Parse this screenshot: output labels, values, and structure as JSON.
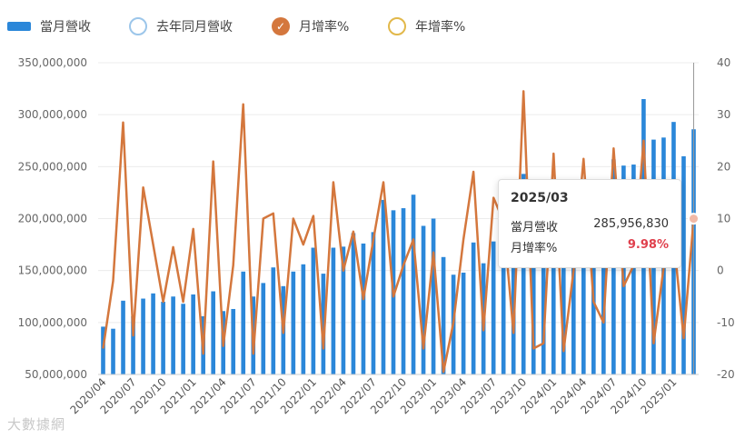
{
  "legend": [
    {
      "label": "當月營收",
      "kind": "bar",
      "color": "#2b87d9"
    },
    {
      "label": "去年同月營收",
      "kind": "circle-outline",
      "color": "#9cc6ea"
    },
    {
      "label": "月增率%",
      "kind": "circle-check",
      "color": "#d4773d"
    },
    {
      "label": "年增率%",
      "kind": "circle-outline",
      "color": "#e2b84a"
    }
  ],
  "tooltip": {
    "title": "2025/03",
    "revenue_label": "當月營收",
    "revenue_value": "285,956,830",
    "mom_label": "月增率%",
    "mom_value": "9.98%"
  },
  "watermark": "大數據網",
  "colors": {
    "bar": "#2b87d9",
    "line": "#d4773d",
    "marker": "#f2b9a6"
  },
  "chart_data": {
    "type": "bar+line",
    "categories": [
      "2020/04",
      "2020/05",
      "2020/06",
      "2020/07",
      "2020/08",
      "2020/09",
      "2020/10",
      "2020/11",
      "2020/12",
      "2021/01",
      "2021/02",
      "2021/03",
      "2021/04",
      "2021/05",
      "2021/06",
      "2021/07",
      "2021/08",
      "2021/09",
      "2021/10",
      "2021/11",
      "2021/12",
      "2022/01",
      "2022/02",
      "2022/03",
      "2022/04",
      "2022/05",
      "2022/06",
      "2022/07",
      "2022/08",
      "2022/09",
      "2022/10",
      "2022/11",
      "2022/12",
      "2023/01",
      "2023/02",
      "2023/03",
      "2023/04",
      "2023/05",
      "2023/06",
      "2023/07",
      "2023/08",
      "2023/09",
      "2023/10",
      "2023/11",
      "2023/12",
      "2024/01",
      "2024/02",
      "2024/03",
      "2024/04",
      "2024/05",
      "2024/06",
      "2024/07",
      "2024/08",
      "2024/09",
      "2024/10",
      "2024/11",
      "2024/12",
      "2025/01",
      "2025/02",
      "2025/03"
    ],
    "x_tick_labels": [
      "2020/04",
      "2020/07",
      "2020/10",
      "2021/01",
      "2021/04",
      "2021/07",
      "2021/10",
      "2022/01",
      "2022/04",
      "2022/07",
      "2022/10",
      "2023/01",
      "2023/04",
      "2023/07",
      "2023/10",
      "2024/01",
      "2024/04",
      "2024/07",
      "2024/10",
      "2025/01"
    ],
    "series": [
      {
        "name": "當月營收",
        "type": "bar",
        "axis": "left",
        "values": [
          96000000,
          94000000,
          121000000,
          106000000,
          123000000,
          128000000,
          120000000,
          125000000,
          118000000,
          127000000,
          106000000,
          130000000,
          111000000,
          113000000,
          149000000,
          125000000,
          138000000,
          153000000,
          135000000,
          149000000,
          156000000,
          172000000,
          147000000,
          172000000,
          173000000,
          186000000,
          176000000,
          187000000,
          218000000,
          208000000,
          210000000,
          223000000,
          193000000,
          200000000,
          163000000,
          146000000,
          148000000,
          177000000,
          157000000,
          178000000,
          160000000,
          180000000,
          243000000,
          160000000,
          155000000,
          160000000,
          158000000,
          157000000,
          158000000,
          157000000,
          160000000,
          257000000,
          251000000,
          252000000,
          315000000,
          276000000,
          278000000,
          293000000,
          260000000,
          285956830
        ]
      },
      {
        "name": "月增率%",
        "type": "line",
        "axis": "right",
        "values": [
          -15.0,
          -2.0,
          28.5,
          -12.5,
          16.0,
          5.0,
          -6.0,
          4.5,
          -6.0,
          8.0,
          -16.0,
          21.0,
          -14.5,
          1.0,
          32.0,
          -16.0,
          10.0,
          11.0,
          -12.0,
          10.0,
          5.0,
          10.5,
          -15.0,
          17.0,
          0.0,
          7.5,
          -5.5,
          6.0,
          17.0,
          -5.0,
          1.0,
          6.0,
          -15.0,
          3.5,
          -19.5,
          -10.0,
          6.0,
          19.0,
          -11.5,
          14.0,
          9.5,
          -12.0,
          34.5,
          -15.0,
          -14.0,
          22.5,
          -15.5,
          0.0,
          21.5,
          -6.0,
          -10.0,
          23.5,
          -3.0,
          1.0,
          25.0,
          -14.0,
          0.5,
          6.0,
          -13.0,
          9.98
        ]
      }
    ],
    "y_left": {
      "min": 50000000,
      "max": 350000000,
      "ticks": [
        "50,000,000",
        "100,000,000",
        "150,000,000",
        "200,000,000",
        "250,000,000",
        "300,000,000",
        "350,000,000"
      ]
    },
    "y_right": {
      "min": -20,
      "max": 40,
      "ticks": [
        "-20",
        "-10",
        "0",
        "10",
        "20",
        "30",
        "40"
      ]
    },
    "grid": true,
    "legend_position": "top"
  }
}
